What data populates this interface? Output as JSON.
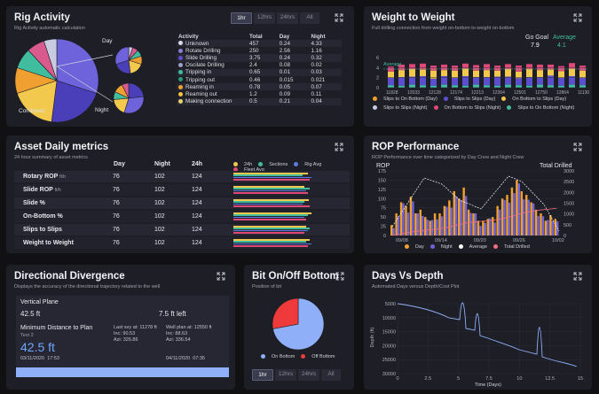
{
  "rig_activity": {
    "title": "Rig Activity",
    "subtitle": "Rig Activity automatic calculation",
    "ranges": [
      "1hr",
      "12hrs",
      "24hrs",
      "All"
    ],
    "selected_range": "1hr",
    "pie_labels": {
      "combined": "Combined",
      "day": "Day",
      "night": "Night"
    },
    "columns": [
      "Activity",
      "Total",
      "Day",
      "Night"
    ],
    "rows": [
      {
        "activity": "Unknown",
        "total": "457",
        "day": "0.24",
        "night": "4.33",
        "color": "#d9dce8"
      },
      {
        "activity": "Rotate Drilling",
        "total": "250",
        "day": "2.56",
        "night": "1.16",
        "color": "#8a7fd8"
      },
      {
        "activity": "Slide Drilling",
        "total": "3.75",
        "day": "0.24",
        "night": "0.32",
        "color": "#5b4fd0"
      },
      {
        "activity": "Oscilate Drilling",
        "total": "2.4",
        "day": "0.08",
        "night": "0.02",
        "color": "#9aa3c8"
      },
      {
        "activity": "Tripping in",
        "total": "0.65",
        "day": "0.01",
        "night": "0.03",
        "color": "#3fbd9e"
      },
      {
        "activity": "Tripping out",
        "total": "0.46",
        "day": "0.015",
        "night": "0.021",
        "color": "#2a9d7a"
      },
      {
        "activity": "Reaming in",
        "total": "0.78",
        "day": "0.05",
        "night": "0.07",
        "color": "#f0a030"
      },
      {
        "activity": "Reaming out",
        "total": "1.2",
        "day": "0.09",
        "night": "0.11",
        "color": "#f5c542"
      },
      {
        "activity": "Making connection",
        "total": "0.5",
        "day": "0.21",
        "night": "0.04",
        "color": "#e8d070"
      }
    ],
    "pie_slices": [
      {
        "name": "Unknown",
        "value": 30,
        "color": "#6f63dc"
      },
      {
        "name": "Rotate Drilling",
        "value": 22,
        "color": "#4a3fb8"
      },
      {
        "name": "Making connection",
        "value": 18,
        "color": "#f2c94c"
      },
      {
        "name": "Reaming",
        "value": 10,
        "color": "#f0a030"
      },
      {
        "name": "Tripping",
        "value": 8,
        "color": "#3fbd9e"
      },
      {
        "name": "Oscilate",
        "value": 7,
        "color": "#d95a8c"
      },
      {
        "name": "Other",
        "value": 5,
        "color": "#c9cbe0"
      }
    ]
  },
  "weight_to_weight": {
    "title": "Weight to Weight",
    "subtitle": "Full drilling connection from weight on-bottom to weight on-bottom",
    "goal_label": "Go Goal",
    "goal_value": "7.9",
    "average_label": "Average",
    "average_value": "4.1",
    "average_line_label": "Average",
    "y_ticks": [
      "6",
      "4",
      "2",
      "0"
    ],
    "legend": [
      {
        "label": "Slips to On Bottom (Day)",
        "color": "#f0a030"
      },
      {
        "label": "Slips to Slips (Day)",
        "color": "#5b4fd0"
      },
      {
        "label": "On Bottom to Slips (Day)",
        "color": "#f2c94c"
      },
      {
        "label": "Slips to Slips (Night)",
        "color": "#c8cbe8"
      },
      {
        "label": "On Bottom to Slips (Night)",
        "color": "#e04878"
      },
      {
        "label": "Slips to On Bottom (Night)",
        "color": "#3fbd9e"
      }
    ]
  },
  "asset_daily": {
    "title": "Asset Daily metrics",
    "subtitle": "24 hour summary of asset metrics",
    "columns": [
      "Day",
      "Night",
      "24h"
    ],
    "legend": [
      {
        "label": "24h",
        "color": "#f2c94c"
      },
      {
        "label": "Sections",
        "color": "#3fbd9e"
      },
      {
        "label": "Rig Avg",
        "color": "#5b7ce8"
      },
      {
        "label": "Fleet Avg",
        "color": "#e04878"
      }
    ],
    "rows": [
      {
        "name": "Rotary ROP",
        "unit": "ft/h",
        "day": "76",
        "night": "102",
        "h24": "124"
      },
      {
        "name": "Slide ROP",
        "unit": "ft/h",
        "day": "76",
        "night": "102",
        "h24": "124"
      },
      {
        "name": "Slide %",
        "unit": "",
        "day": "76",
        "night": "102",
        "h24": "124"
      },
      {
        "name": "On-Bottom %",
        "unit": "",
        "day": "76",
        "night": "102",
        "h24": "124"
      },
      {
        "name": "Slips to Slips",
        "unit": "",
        "day": "76",
        "night": "102",
        "h24": "124"
      },
      {
        "name": "Weight to Weight",
        "unit": "",
        "day": "76",
        "night": "102",
        "h24": "124"
      }
    ]
  },
  "rop_performance": {
    "title": "ROP Performance",
    "subtitle": "ROP Performance over time categorized by Day Crew and Night Crew",
    "left_axis_title": "ROP",
    "right_axis_title": "Total Drilled",
    "left_ticks": [
      "175",
      "150",
      "125",
      "100",
      "75",
      "50",
      "25",
      "0"
    ],
    "right_ticks": [
      "3000",
      "2500",
      "2000",
      "1500",
      "1000",
      "500",
      "0"
    ],
    "x_ticks": [
      "09/08",
      "09/14",
      "09/20",
      "09/26",
      "10/02"
    ],
    "legend": [
      {
        "label": "Day",
        "color": "#f0a030"
      },
      {
        "label": "Night",
        "color": "#6f63dc"
      },
      {
        "label": "Average",
        "color": "#ffffff"
      },
      {
        "label": "Total Drilled",
        "color": "#f07080"
      }
    ]
  },
  "directional": {
    "title": "Directional Divergence",
    "subtitle": "Displays the accuracy of the directional trajectory related to the well",
    "vertical_plane_label": "Vertical Plane",
    "vertical_value": "42.5 ft",
    "vertical_left": "7.5 ft left",
    "min_distance_label": "Minimum Distance to Plan",
    "text2": "Text 2",
    "min_distance_value": "42.5 ft",
    "date_left": "03/11/2020",
    "time_left": "17:53",
    "last_svy": "Last svy at: 11278 ft",
    "last_inc": "Inc: 90.53",
    "last_azi": "Azi: 326.86",
    "well_plan": "Well plan at: 12550 ft",
    "plan_inc": "Inc: 88.63",
    "plan_azi": "Azi: 336.54",
    "date_right": "04/11/2020",
    "time_right": "07:35"
  },
  "bit_on_off": {
    "title": "Bit On/Off Bottom",
    "subtitle": "Position of bit",
    "legend": [
      {
        "label": "On Bottom",
        "color": "#8fb0f8"
      },
      {
        "label": "Off Bottom",
        "color": "#ee3a3a"
      }
    ],
    "slices": [
      {
        "name": "On Bottom",
        "value": 72,
        "color": "#8fb0f8"
      },
      {
        "name": "Off Bottom",
        "value": 28,
        "color": "#ee3a3a"
      }
    ],
    "ranges": [
      "1hr",
      "12hrs",
      "24hrs",
      "All"
    ],
    "selected_range": "1hr"
  },
  "days_depth": {
    "title": "Days Vs Depth",
    "subtitle": "Automated Days versus  Depth/Cost Plot",
    "y_title": "Depth (ft)",
    "x_title": "Time (Days)",
    "y_ticks": [
      "5000",
      "10000",
      "15000",
      "20000",
      "25000",
      "30000"
    ],
    "x_ticks": [
      "0",
      "2.5",
      "5",
      "7.5",
      "10",
      "12.5",
      "15"
    ]
  }
}
